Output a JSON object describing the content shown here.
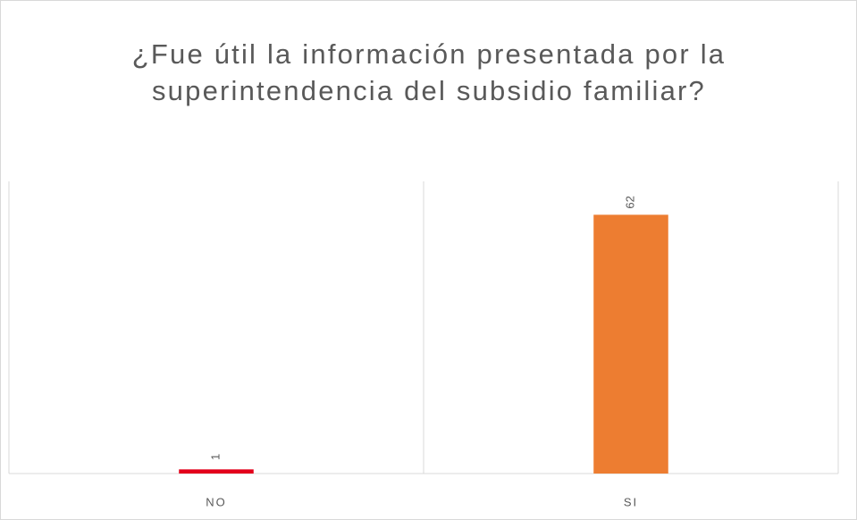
{
  "chart_data": {
    "type": "bar",
    "title": "¿Fue útil la información presentada por la superintendencia del subsidio familiar?",
    "categories": [
      "NO",
      "SI"
    ],
    "values": [
      1,
      62
    ],
    "colors": [
      "#e3001b",
      "#ed7d31"
    ],
    "ylim": [
      0,
      70
    ],
    "grid": true
  }
}
